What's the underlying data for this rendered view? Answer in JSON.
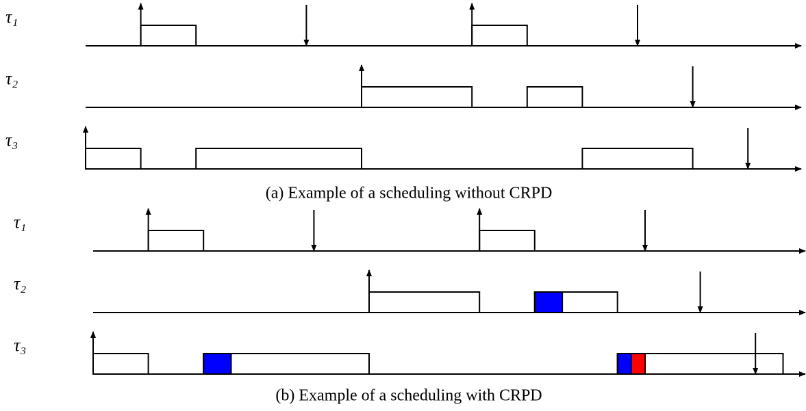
{
  "diagrams": [
    {
      "caption": "(a) Example of a scheduling without CRPD",
      "tasks": [
        {
          "label": "τ₁"
        },
        {
          "label": "τ₂"
        },
        {
          "label": "τ₃"
        }
      ]
    },
    {
      "caption": "(b) Example of a scheduling with CRPD",
      "tasks": [
        {
          "label": "τ₁"
        },
        {
          "label": "τ₂"
        },
        {
          "label": "τ₃"
        }
      ]
    }
  ]
}
